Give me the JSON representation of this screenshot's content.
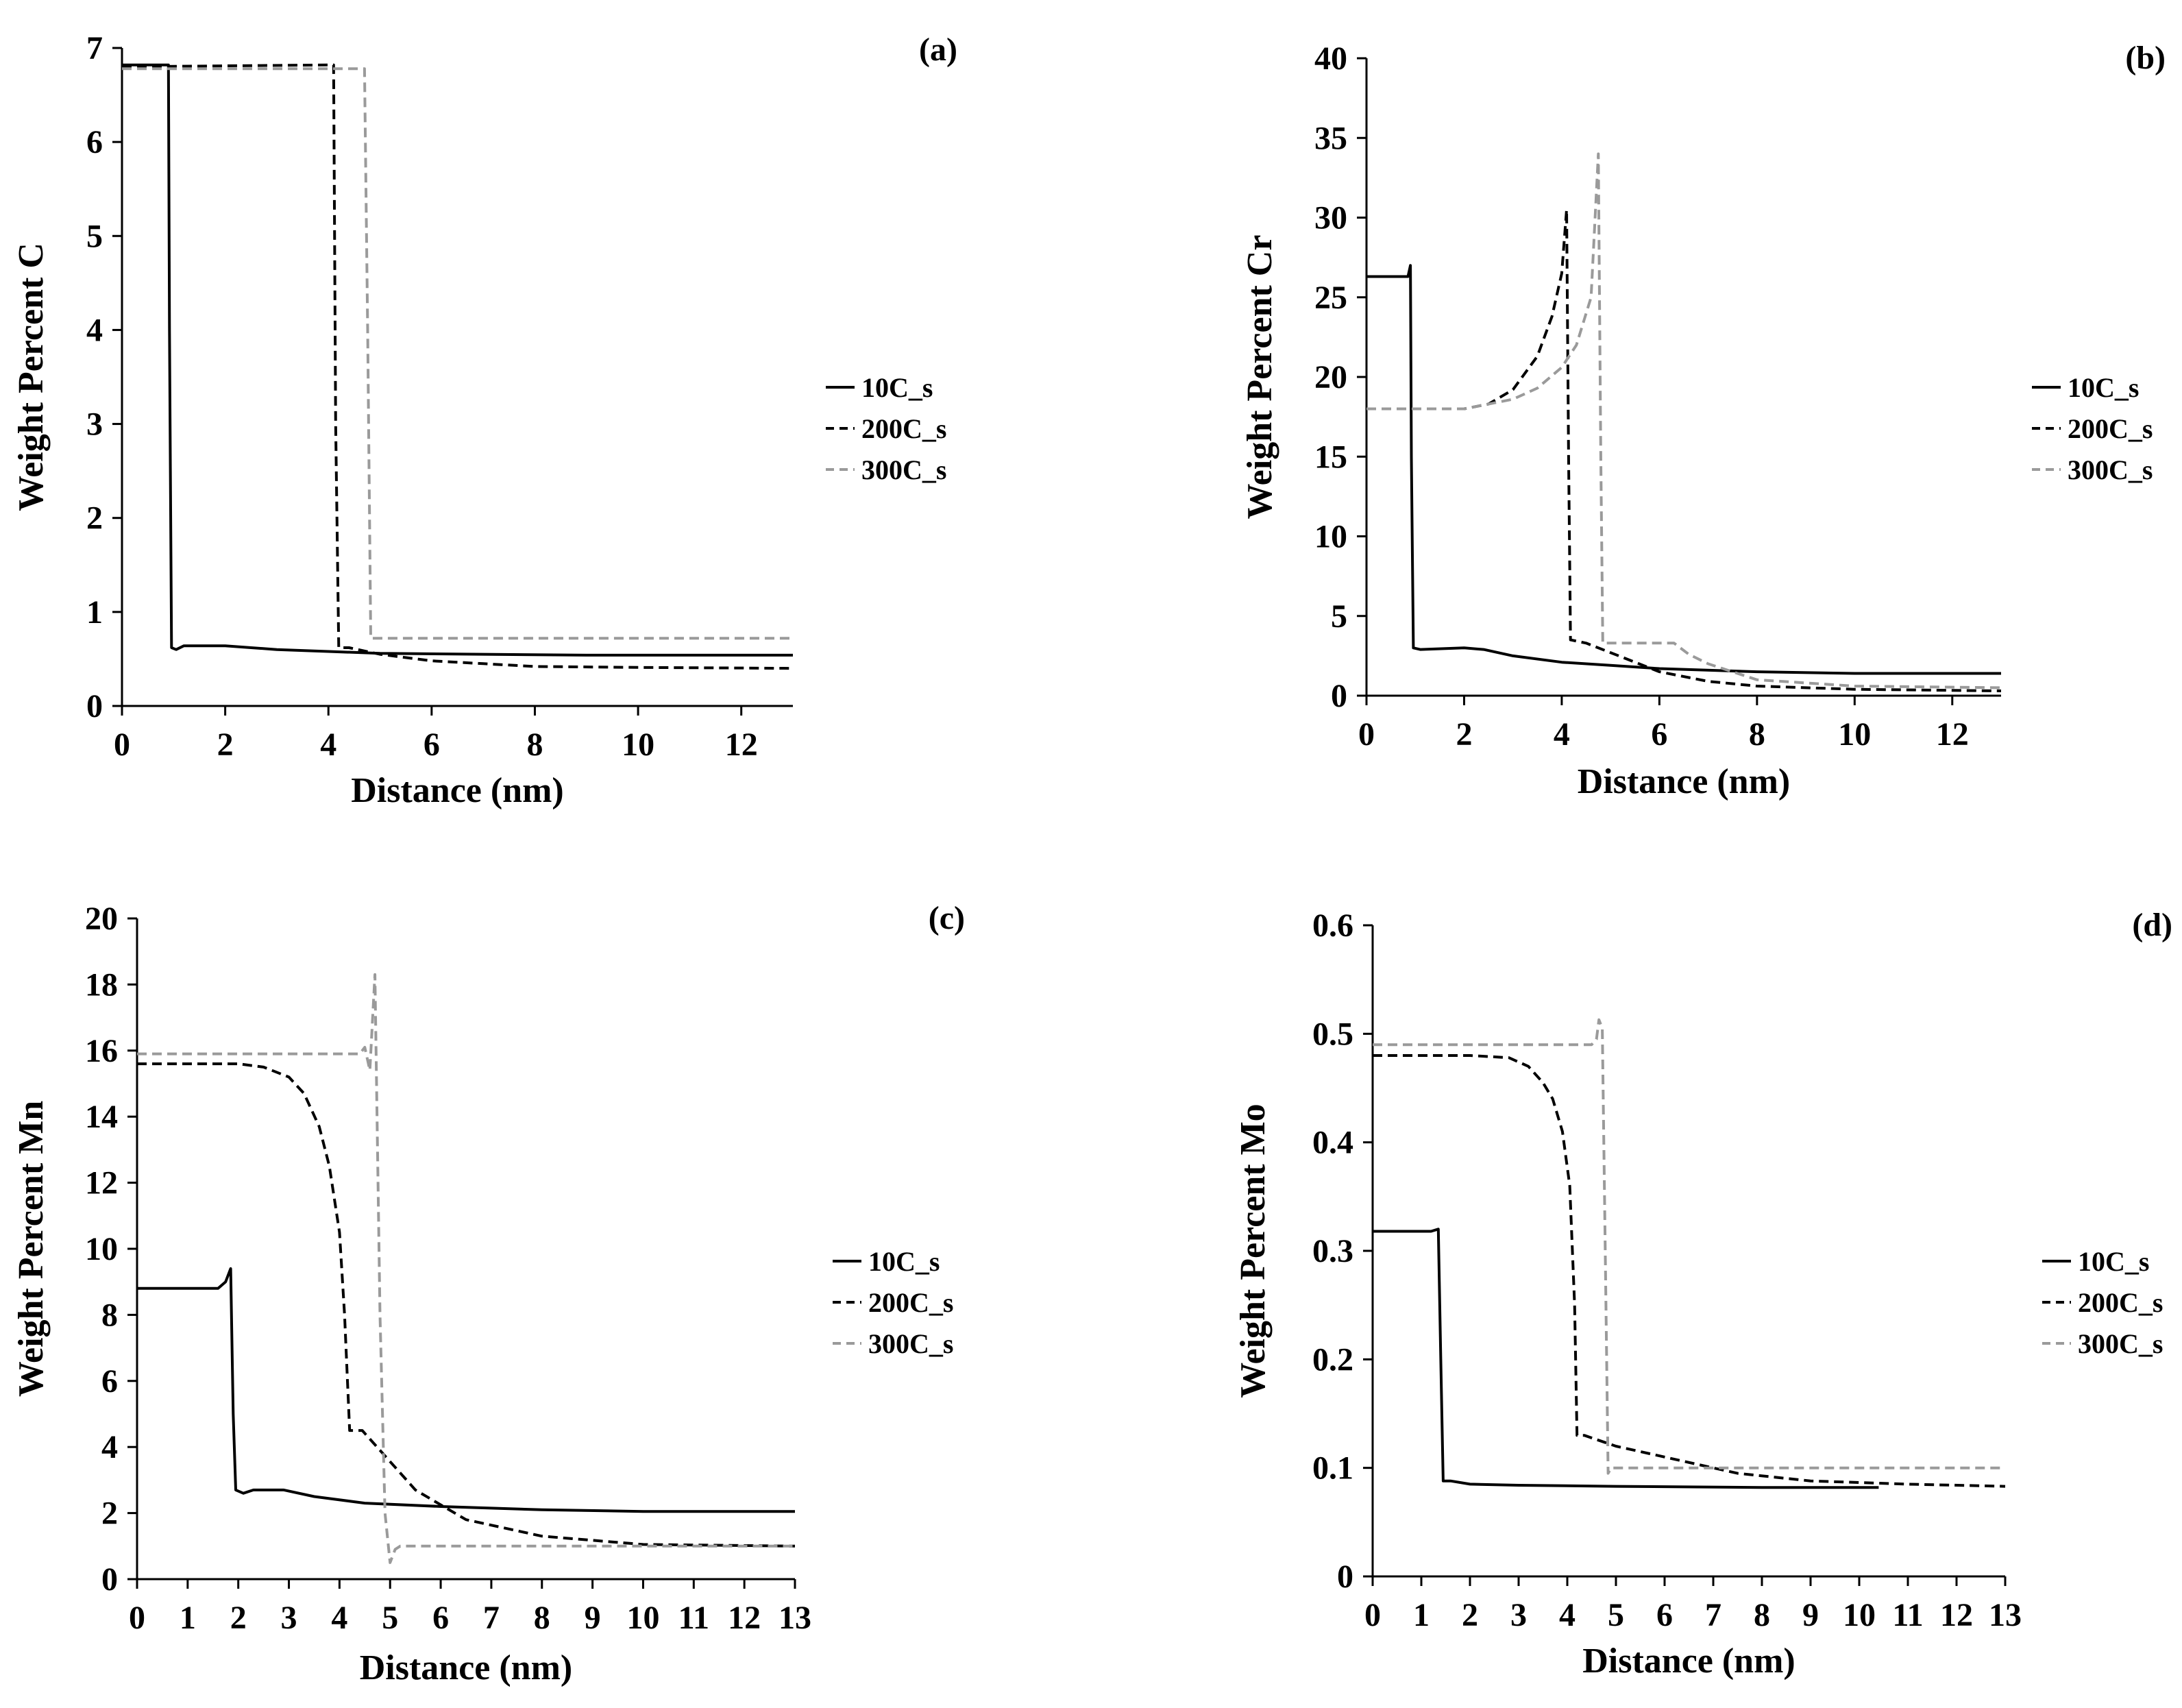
{
  "chart_data": [
    {
      "type": "line",
      "panel_label": "(a)",
      "xlabel": "Distance (nm)",
      "ylabel": "Weight Percent C",
      "xlim": [
        0,
        13
      ],
      "ylim": [
        0,
        7
      ],
      "xticks": [
        "0",
        "2",
        "4",
        "6",
        "8",
        "10",
        "12"
      ],
      "yticks": [
        "0",
        "1",
        "2",
        "3",
        "4",
        "5",
        "6",
        "7"
      ],
      "legend_position": "right",
      "series": [
        {
          "name": "10C_s",
          "style": "solid",
          "color": "#000000",
          "x": [
            0,
            0.9,
            0.92,
            0.96,
            1.05,
            1.2,
            2.0,
            2.5,
            3.0,
            4.0,
            5.0,
            7.0,
            9.0,
            11.0,
            13.0
          ],
          "y": [
            6.82,
            6.82,
            4.0,
            0.62,
            0.6,
            0.64,
            0.64,
            0.62,
            0.6,
            0.58,
            0.56,
            0.55,
            0.54,
            0.54,
            0.54
          ]
        },
        {
          "name": "200C_s",
          "style": "dashed",
          "color": "#000000",
          "x": [
            0,
            4.1,
            4.14,
            4.2,
            4.4,
            5.0,
            6.0,
            7.0,
            8.0,
            10.0,
            13.0
          ],
          "y": [
            6.8,
            6.82,
            3.0,
            0.62,
            0.62,
            0.55,
            0.48,
            0.45,
            0.42,
            0.41,
            0.4
          ]
        },
        {
          "name": "300C_s",
          "style": "dashed",
          "color": "#9a9a9a",
          "x": [
            0,
            4.7,
            4.76,
            4.82,
            5.0,
            13.0
          ],
          "y": [
            6.78,
            6.78,
            4.0,
            0.72,
            0.72,
            0.72
          ]
        }
      ]
    },
    {
      "type": "line",
      "panel_label": "(b)",
      "xlabel": "Distance (nm)",
      "ylabel": "Weight Percent Cr",
      "xlim": [
        0,
        13
      ],
      "ylim": [
        0,
        40
      ],
      "xticks": [
        "0",
        "2",
        "4",
        "6",
        "8",
        "10",
        "12"
      ],
      "yticks": [
        "0",
        "5",
        "10",
        "15",
        "20",
        "25",
        "30",
        "35",
        "40"
      ],
      "legend_position": "right",
      "series": [
        {
          "name": "10C_s",
          "style": "solid",
          "color": "#000000",
          "x": [
            0,
            0.85,
            0.9,
            0.92,
            0.96,
            1.1,
            2.0,
            2.4,
            3.0,
            4.0,
            5.0,
            6.0,
            8.0,
            10.0,
            13.0
          ],
          "y": [
            26.3,
            26.3,
            27.0,
            15.0,
            3.0,
            2.9,
            3.0,
            2.9,
            2.5,
            2.1,
            1.9,
            1.7,
            1.5,
            1.4,
            1.4
          ]
        },
        {
          "name": "200C_s",
          "style": "dashed",
          "color": "#000000",
          "x": [
            0,
            2.0,
            2.5,
            3.0,
            3.5,
            3.8,
            4.0,
            4.1,
            4.14,
            4.18,
            4.5,
            5.0,
            6.0,
            7.0,
            8.0,
            10.0,
            13.0
          ],
          "y": [
            18.0,
            18.0,
            18.3,
            19.2,
            21.3,
            23.8,
            26.5,
            30.5,
            15.0,
            3.5,
            3.3,
            2.7,
            1.5,
            0.9,
            0.6,
            0.4,
            0.3
          ]
        },
        {
          "name": "300C_s",
          "style": "dashed",
          "color": "#9a9a9a",
          "x": [
            0,
            2.0,
            3.0,
            3.5,
            4.0,
            4.3,
            4.6,
            4.75,
            4.8,
            4.84,
            5.0,
            6.3,
            6.6,
            7.0,
            8.0,
            10.0,
            13.0
          ],
          "y": [
            18.0,
            18.0,
            18.6,
            19.3,
            20.6,
            22.0,
            25.0,
            34.0,
            15.0,
            3.3,
            3.3,
            3.3,
            2.6,
            2.0,
            1.0,
            0.6,
            0.5
          ]
        }
      ]
    },
    {
      "type": "line",
      "panel_label": "(c)",
      "xlabel": "Distance (nm)",
      "ylabel": "Weight Percent Mn",
      "xlim": [
        0,
        13
      ],
      "ylim": [
        0,
        20
      ],
      "xticks": [
        "0",
        "1",
        "2",
        "3",
        "4",
        "5",
        "6",
        "7",
        "8",
        "9",
        "10",
        "11",
        "12",
        "13"
      ],
      "yticks": [
        "0",
        "2",
        "4",
        "6",
        "8",
        "10",
        "12",
        "14",
        "16",
        "18",
        "20"
      ],
      "legend_position": "right",
      "series": [
        {
          "name": "10C_s",
          "style": "solid",
          "color": "#000000",
          "x": [
            0,
            1.6,
            1.75,
            1.85,
            1.9,
            1.95,
            2.1,
            2.3,
            2.9,
            3.5,
            4.5,
            6.0,
            8.0,
            10.0,
            13.0
          ],
          "y": [
            8.8,
            8.8,
            9.0,
            9.4,
            5.0,
            2.7,
            2.6,
            2.7,
            2.7,
            2.5,
            2.3,
            2.2,
            2.1,
            2.05,
            2.05
          ]
        },
        {
          "name": "200C_s",
          "style": "dashed",
          "color": "#000000",
          "x": [
            0,
            2.0,
            2.5,
            3.0,
            3.3,
            3.6,
            3.8,
            4.0,
            4.1,
            4.2,
            4.45,
            4.8,
            5.5,
            6.5,
            8.0,
            10.0,
            13.0
          ],
          "y": [
            15.6,
            15.6,
            15.5,
            15.2,
            14.7,
            13.7,
            12.5,
            10.5,
            8.0,
            4.5,
            4.5,
            3.9,
            2.7,
            1.8,
            1.3,
            1.05,
            1.0
          ]
        },
        {
          "name": "300C_s",
          "style": "dashed",
          "color": "#9a9a9a",
          "x": [
            0,
            4.4,
            4.5,
            4.6,
            4.7,
            4.8,
            4.9,
            5.0,
            5.1,
            5.2,
            13.0
          ],
          "y": [
            15.9,
            15.9,
            16.1,
            15.4,
            18.3,
            8.0,
            2.0,
            0.5,
            0.9,
            1.0,
            1.0
          ]
        }
      ]
    },
    {
      "type": "line",
      "panel_label": "(d)",
      "xlabel": "Distance (nm)",
      "ylabel": "Weight Percent Mo",
      "xlim": [
        0,
        13
      ],
      "ylim": [
        0,
        0.6
      ],
      "xticks": [
        "0",
        "1",
        "2",
        "3",
        "4",
        "5",
        "6",
        "7",
        "8",
        "9",
        "10",
        "11",
        "12",
        "13"
      ],
      "yticks": [
        "0",
        "0.1",
        "0.2",
        "0.3",
        "0.4",
        "0.5",
        "0.6"
      ],
      "legend_position": "right",
      "series": [
        {
          "name": "10C_s",
          "style": "solid",
          "color": "#000000",
          "x": [
            0,
            1.2,
            1.35,
            1.4,
            1.45,
            1.6,
            2.0,
            3.0,
            5.0,
            8.0,
            10.4
          ],
          "y": [
            0.318,
            0.318,
            0.32,
            0.2,
            0.088,
            0.088,
            0.085,
            0.084,
            0.083,
            0.082,
            0.082
          ]
        },
        {
          "name": "200C_s",
          "style": "dashed",
          "color": "#000000",
          "x": [
            0,
            2.0,
            2.8,
            3.2,
            3.5,
            3.7,
            3.9,
            4.05,
            4.15,
            4.2,
            4.35,
            5.0,
            6.0,
            7.5,
            9.0,
            11.0,
            13.0
          ],
          "y": [
            0.48,
            0.48,
            0.478,
            0.47,
            0.455,
            0.44,
            0.41,
            0.36,
            0.25,
            0.13,
            0.13,
            0.12,
            0.11,
            0.095,
            0.088,
            0.085,
            0.083
          ]
        },
        {
          "name": "300C_s",
          "style": "dashed",
          "color": "#9a9a9a",
          "x": [
            0,
            4.5,
            4.6,
            4.65,
            4.72,
            4.78,
            4.84,
            4.9,
            5.0,
            13.0
          ],
          "y": [
            0.49,
            0.49,
            0.495,
            0.513,
            0.505,
            0.3,
            0.095,
            0.1,
            0.1,
            0.1
          ]
        }
      ]
    }
  ]
}
